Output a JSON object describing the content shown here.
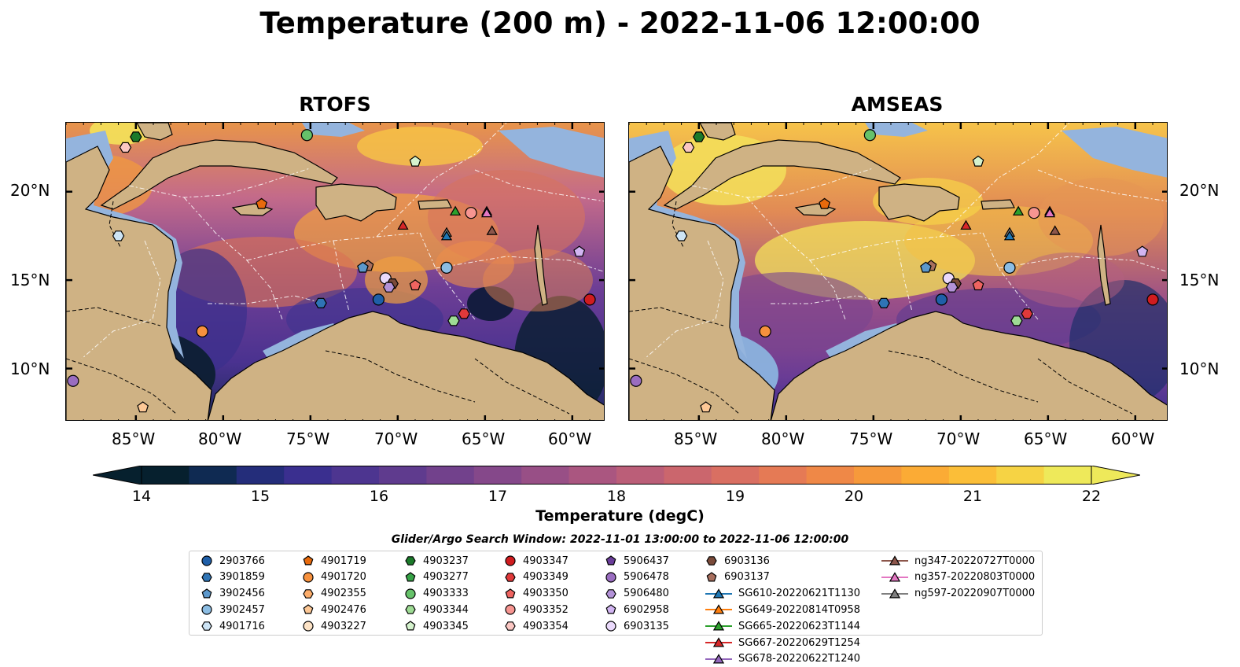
{
  "title": "Temperature (200 m) - 2022-11-06 12:00:00",
  "panels": [
    {
      "title": "RTOFS"
    },
    {
      "title": "AMSEAS"
    }
  ],
  "axes": {
    "x_ticks": [
      "85°W",
      "80°W",
      "75°W",
      "70°W",
      "65°W",
      "60°W"
    ],
    "y_ticks": [
      "20°N",
      "15°N",
      "10°N"
    ]
  },
  "colorbar": {
    "label": "Temperature (degC)",
    "ticks": [
      "14",
      "15",
      "16",
      "17",
      "18",
      "19",
      "20",
      "21",
      "22"
    ],
    "min": 14,
    "max": 22,
    "extend": "both",
    "colors": [
      "#06202e",
      "#0f2a52",
      "#242d7a",
      "#3a2f8f",
      "#4d3590",
      "#5f3b8e",
      "#72418c",
      "#85488a",
      "#984f86",
      "#aa5680",
      "#bb5e78",
      "#cb666d",
      "#d96f62",
      "#e57a55",
      "#ef8847",
      "#f6993b",
      "#fbab35",
      "#fbbe38",
      "#f6d344",
      "#eee95a"
    ]
  },
  "legend": {
    "title": "Glider/Argo Search Window: 2022-11-01 13:00:00 to 2022-11-06 12:00:00",
    "items": [
      {
        "label": "2903766",
        "marker": "circle",
        "color": "#1f5fa8"
      },
      {
        "label": "3901859",
        "marker": "hexagon",
        "color": "#2f74b5"
      },
      {
        "label": "3902456",
        "marker": "pentagon",
        "color": "#5c98cc"
      },
      {
        "label": "3902457",
        "marker": "circle",
        "color": "#8cbde3"
      },
      {
        "label": "4901716",
        "marker": "hexagon",
        "color": "#cde4f5"
      },
      {
        "label": "4901719",
        "marker": "pentagon",
        "color": "#e86a0c"
      },
      {
        "label": "4901720",
        "marker": "circle",
        "color": "#f7913d"
      },
      {
        "label": "4902355",
        "marker": "hexagon",
        "color": "#fcad6b"
      },
      {
        "label": "4902476",
        "marker": "pentagon",
        "color": "#fdc896"
      },
      {
        "label": "4903227",
        "marker": "circle",
        "color": "#fde3c6"
      },
      {
        "label": "4903237",
        "marker": "hexagon",
        "color": "#1b7a2a"
      },
      {
        "label": "4903277",
        "marker": "pentagon",
        "color": "#36a246"
      },
      {
        "label": "4903333",
        "marker": "circle",
        "color": "#66c26a"
      },
      {
        "label": "4903344",
        "marker": "hexagon",
        "color": "#9edb94"
      },
      {
        "label": "4903345",
        "marker": "pentagon",
        "color": "#d5f2cd"
      },
      {
        "label": "4903347",
        "marker": "circle",
        "color": "#d01c1f"
      },
      {
        "label": "4903349",
        "marker": "hexagon",
        "color": "#e0393a"
      },
      {
        "label": "4903350",
        "marker": "pentagon",
        "color": "#ef6460"
      },
      {
        "label": "4903352",
        "marker": "circle",
        "color": "#f79591"
      },
      {
        "label": "4903354",
        "marker": "hexagon",
        "color": "#fbc7c3"
      },
      {
        "label": "5906437",
        "marker": "pentagon",
        "color": "#6a3d9a"
      },
      {
        "label": "5906478",
        "marker": "circle",
        "color": "#9a6dc0"
      },
      {
        "label": "5906480",
        "marker": "hexagon",
        "color": "#b392d8"
      },
      {
        "label": "6902958",
        "marker": "pentagon",
        "color": "#d2b5f2"
      },
      {
        "label": "6903135",
        "marker": "circle",
        "color": "#ead9fb"
      },
      {
        "label": "6903136",
        "marker": "hexagon",
        "color": "#7a4a3a"
      },
      {
        "label": "6903137",
        "marker": "pentagon",
        "color": "#a86f5e"
      },
      {
        "label": "SG610-20220621T1130",
        "marker": "triangle-line",
        "color": "#1f77b4"
      },
      {
        "label": "SG649-20220814T0958",
        "marker": "triangle-line",
        "color": "#ff7f0e"
      },
      {
        "label": "SG665-20220623T1144",
        "marker": "triangle-line",
        "color": "#2ca02c"
      },
      {
        "label": "SG667-20220629T1254",
        "marker": "triangle-line",
        "color": "#d62728"
      },
      {
        "label": "SG678-20220622T1240",
        "marker": "triangle-line",
        "color": "#9467bd"
      },
      {
        "label": "ng347-20220727T0000",
        "marker": "triangle-line",
        "color": "#8c564b"
      },
      {
        "label": "ng357-20220803T0000",
        "marker": "triangle-line",
        "color": "#e377c2"
      },
      {
        "label": "ng597-20220907T0000",
        "marker": "triangle-line",
        "color": "#7f7f7f"
      }
    ]
  },
  "observations": [
    {
      "id": "4903237",
      "lon": -85.0,
      "lat": 23.1
    },
    {
      "id": "4903333",
      "lon": -75.2,
      "lat": 23.2
    },
    {
      "id": "4903354",
      "lon": -85.6,
      "lat": 22.5
    },
    {
      "id": "4903345",
      "lon": -69.0,
      "lat": 21.7
    },
    {
      "id": "4901719",
      "lon": -77.8,
      "lat": 19.3
    },
    {
      "id": "4903352",
      "lon": -65.8,
      "lat": 18.8
    },
    {
      "id": "4901716",
      "lon": -86.0,
      "lat": 17.5
    },
    {
      "id": "6903137",
      "lon": -71.7,
      "lat": 15.8
    },
    {
      "id": "3902456",
      "lon": -72.0,
      "lat": 15.7
    },
    {
      "id": "3902457",
      "lon": -67.2,
      "lat": 15.7
    },
    {
      "id": "6903135",
      "lon": -70.7,
      "lat": 15.1
    },
    {
      "id": "6903136",
      "lon": -70.3,
      "lat": 14.8
    },
    {
      "id": "5906480",
      "lon": -70.5,
      "lat": 14.6
    },
    {
      "id": "4903350",
      "lon": -69.0,
      "lat": 14.7
    },
    {
      "id": "6902958",
      "lon": -59.6,
      "lat": 16.6
    },
    {
      "id": "2903766",
      "lon": -71.1,
      "lat": 13.9
    },
    {
      "id": "3901859",
      "lon": -74.4,
      "lat": 13.7
    },
    {
      "id": "4903347",
      "lon": -59.0,
      "lat": 13.9
    },
    {
      "id": "4903349",
      "lon": -66.2,
      "lat": 13.1
    },
    {
      "id": "4903344",
      "lon": -66.8,
      "lat": 12.7
    },
    {
      "id": "4901720",
      "lon": -81.2,
      "lat": 12.1
    },
    {
      "id": "5906478",
      "lon": -88.6,
      "lat": 9.3
    },
    {
      "id": "4902476",
      "lon": -84.6,
      "lat": 7.8
    },
    {
      "id": "SG665-20220623T1144",
      "lon": -66.7,
      "lat": 18.9
    },
    {
      "id": "SG678-20220622T1240",
      "lon": -64.9,
      "lat": 18.9
    },
    {
      "id": "ng357-20220803T0000",
      "lon": -64.9,
      "lat": 18.8
    },
    {
      "id": "SG667-20220629T1254",
      "lon": -69.7,
      "lat": 18.1
    },
    {
      "id": "ng347-20220727T0000",
      "lon": -64.6,
      "lat": 17.8
    },
    {
      "id": "ng597-20220907T0000",
      "lon": -67.2,
      "lat": 17.7
    },
    {
      "id": "SG610-20220621T1130",
      "lon": -67.2,
      "lat": 17.5
    }
  ]
}
